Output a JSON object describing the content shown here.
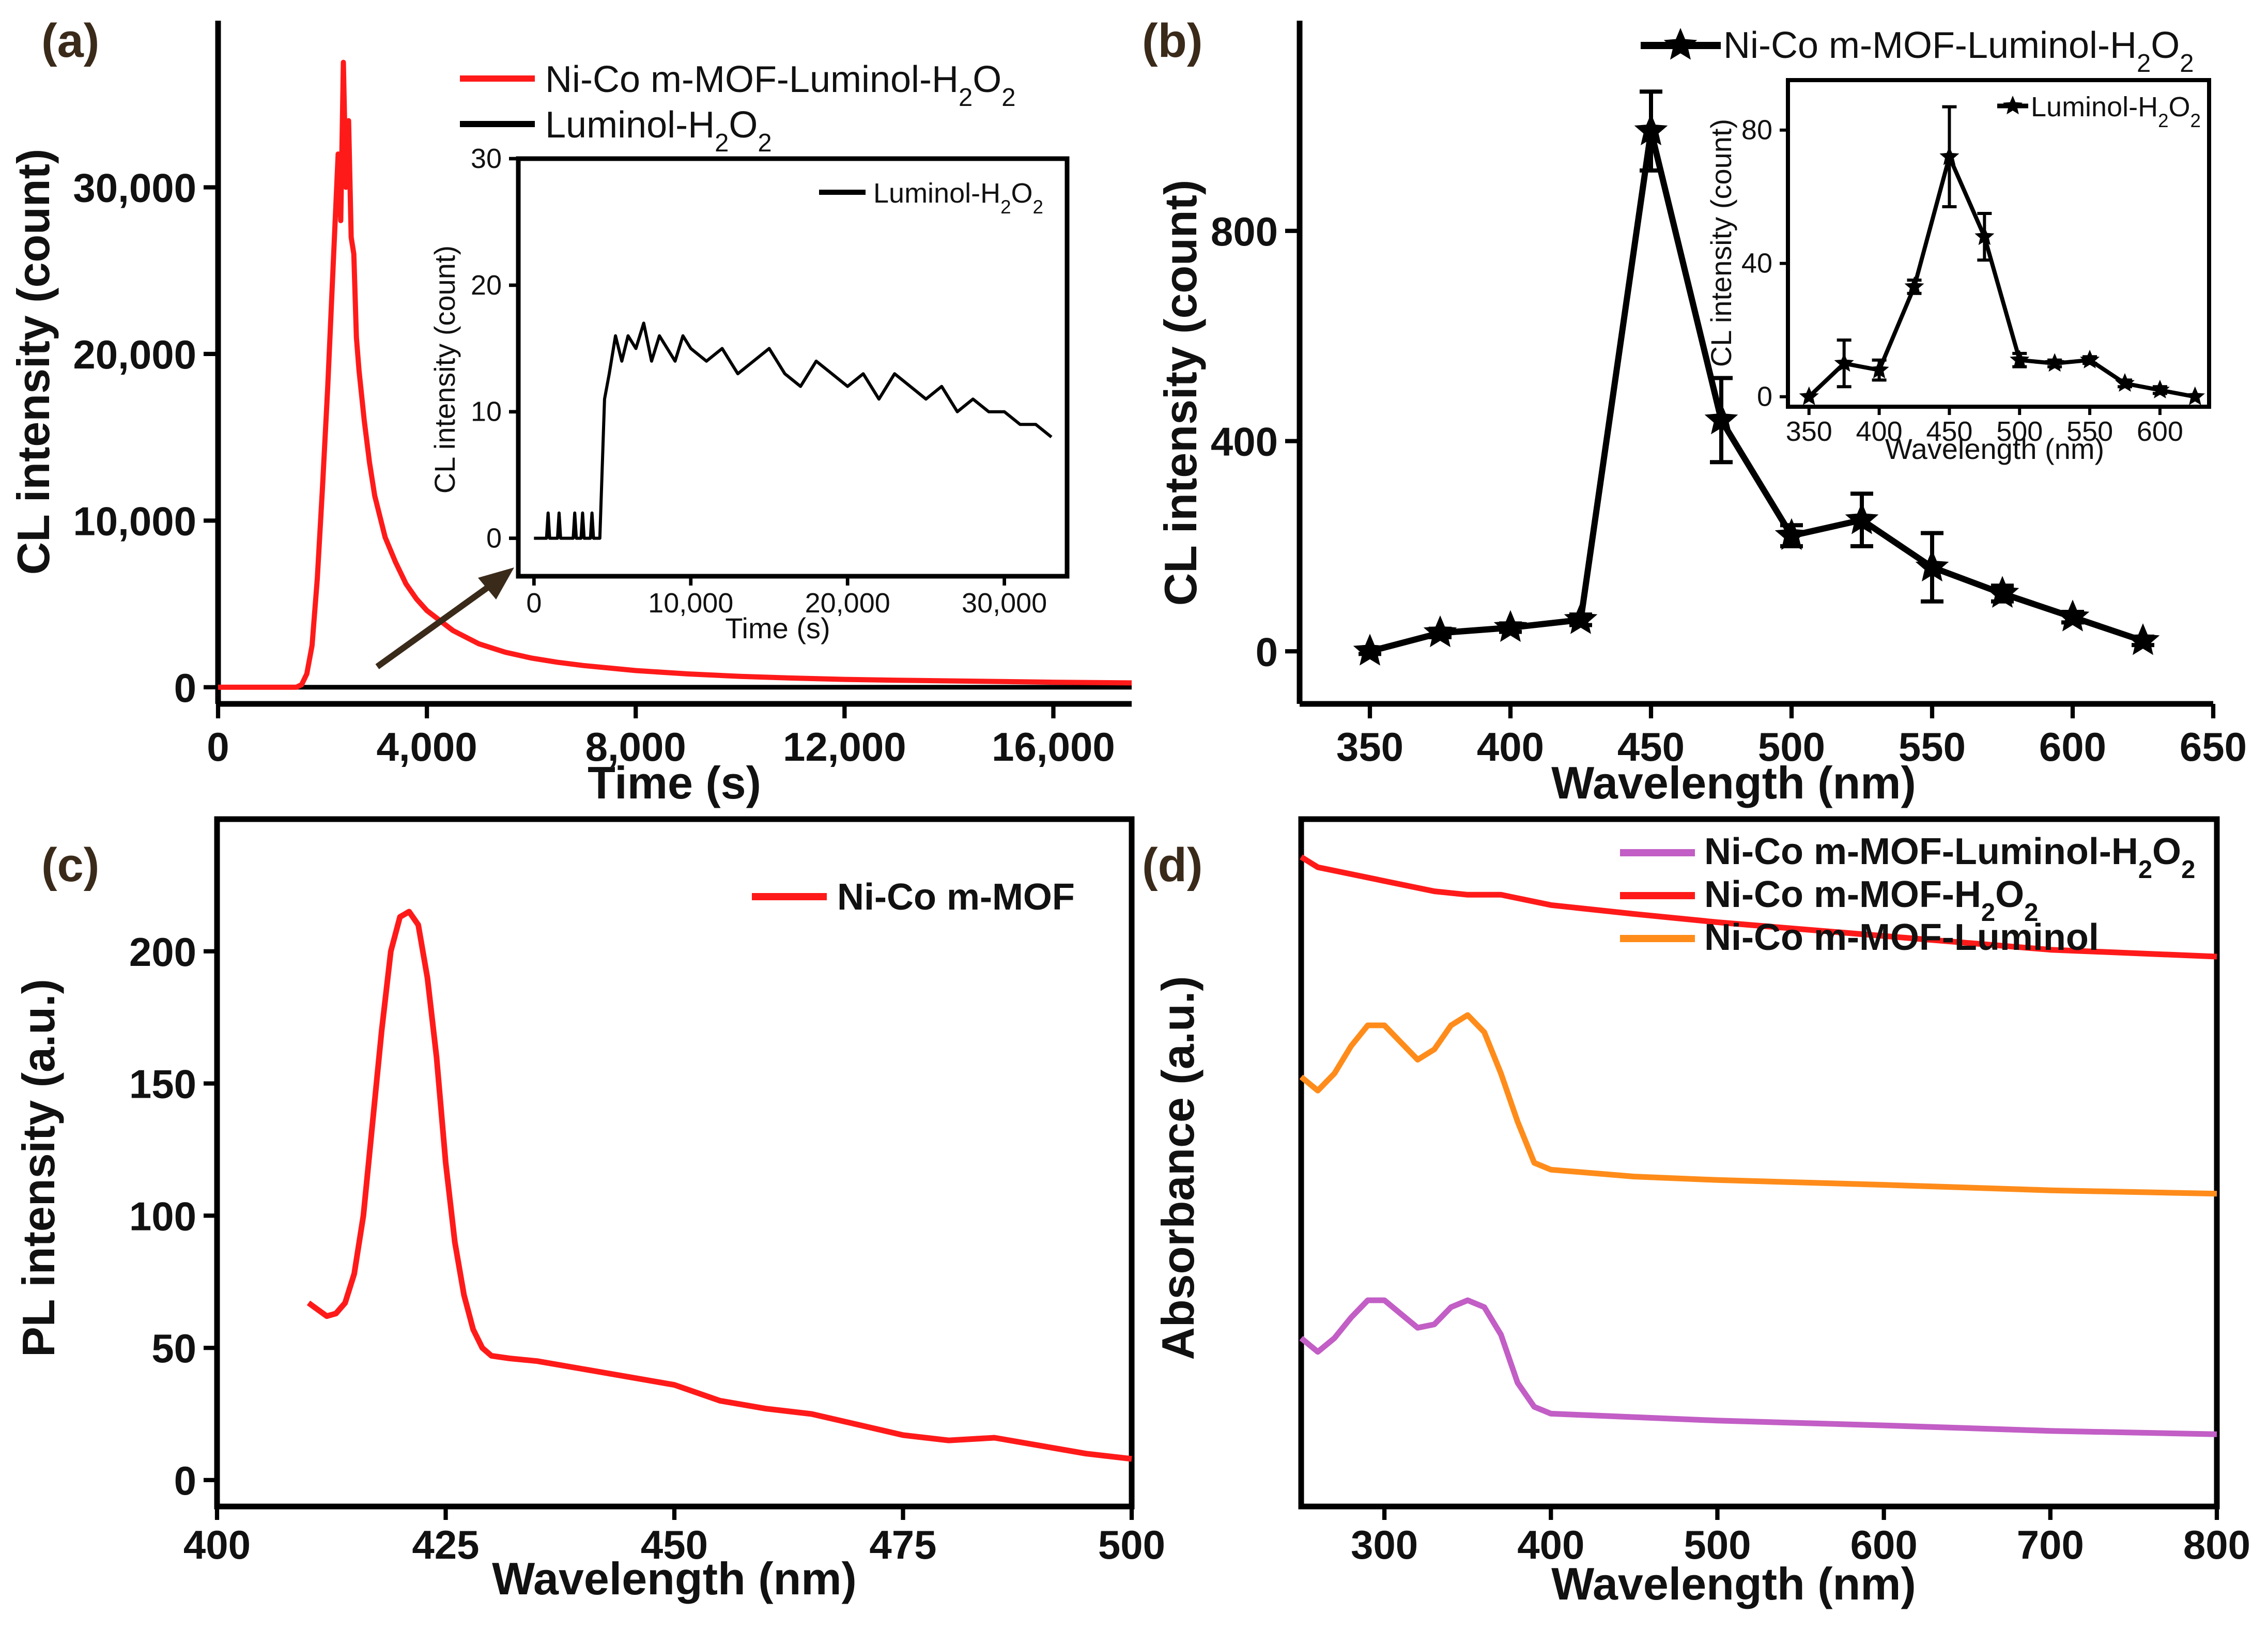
{
  "chart_data": [
    {
      "id": "a",
      "panel_label": "(a)",
      "type": "line",
      "xlabel": "Time (s)",
      "ylabel": "CL intensity (count)",
      "xlim": [
        0,
        17500
      ],
      "ylim": [
        -1000,
        40000
      ],
      "xticks": [
        0,
        4000,
        8000,
        12000,
        16000
      ],
      "xtick_labels": [
        "0",
        "4,000",
        "8,000",
        "12,000",
        "16,000"
      ],
      "yticks": [
        0,
        10000,
        20000,
        30000
      ],
      "ytick_labels": [
        "0",
        "10,000",
        "20,000",
        "30,000"
      ],
      "series": [
        {
          "name": "Ni-Co m-MOF-Luminol-H2O2",
          "label_main": "Ni-Co m-MOF-Luminol-H",
          "label_sub1": "2",
          "label_mid": "O",
          "label_sub2": "2",
          "color": "#ff1a1a",
          "x": [
            0,
            1500,
            1600,
            1700,
            1800,
            1900,
            2000,
            2100,
            2200,
            2300,
            2350,
            2400,
            2450,
            2500,
            2550,
            2600,
            2650,
            2700,
            2800,
            2900,
            3000,
            3200,
            3400,
            3600,
            3800,
            4000,
            4500,
            5000,
            5500,
            6000,
            6500,
            7000,
            8000,
            9000,
            10000,
            11000,
            12000,
            13000,
            14000,
            15000,
            16000,
            17500
          ],
          "y": [
            0,
            0,
            150,
            800,
            2500,
            6500,
            12000,
            18000,
            25000,
            32000,
            28000,
            37500,
            30000,
            34000,
            27000,
            26000,
            21000,
            19000,
            16000,
            13500,
            11500,
            9000,
            7500,
            6200,
            5300,
            4600,
            3400,
            2600,
            2100,
            1750,
            1500,
            1300,
            1000,
            800,
            650,
            550,
            470,
            420,
            380,
            340,
            300,
            260
          ]
        },
        {
          "name": "Luminol-H2O2",
          "label_main": "Luminol-H",
          "label_sub1": "2",
          "label_mid": "O",
          "label_sub2": "2",
          "color": "#000000",
          "x": [
            0,
            17500
          ],
          "y": [
            0,
            0
          ]
        }
      ],
      "annotation": "arrow from baseline to inset",
      "inset": {
        "xlabel": "Time (s)",
        "ylabel": "CL intensity (count)",
        "xlim": [
          -1000,
          34000
        ],
        "ylim": [
          -3,
          30
        ],
        "xticks": [
          0,
          10000,
          20000,
          30000
        ],
        "xtick_labels": [
          "0",
          "10,000",
          "20,000",
          "30,000"
        ],
        "yticks": [
          0,
          10,
          20,
          30
        ],
        "ytick_labels": [
          "0",
          "10",
          "20",
          "30"
        ],
        "series": [
          {
            "name": "Luminol-H2O2",
            "label_main": "Luminol-H",
            "label_sub1": "2",
            "label_mid": "O",
            "label_sub2": "2",
            "color": "#000000",
            "x": [
              0,
              800,
              900,
              1000,
              1500,
              1600,
              1700,
              2500,
              2600,
              2700,
              3000,
              3100,
              3200,
              3600,
              3700,
              3800,
              4000,
              4200,
              4500,
              4800,
              5200,
              5600,
              6000,
              6500,
              7000,
              7500,
              8000,
              8500,
              9000,
              9500,
              10000,
              11000,
              12000,
              13000,
              14000,
              15000,
              16000,
              17000,
              18000,
              19000,
              20000,
              21000,
              22000,
              23000,
              24000,
              25000,
              26000,
              27000,
              28000,
              29000,
              30000,
              31000,
              32000,
              33000
            ],
            "y": [
              0,
              0,
              2,
              0,
              0,
              2,
              0,
              0,
              2,
              0,
              0,
              2,
              0,
              0,
              2,
              0,
              0,
              0,
              11,
              13,
              16,
              14,
              16,
              15,
              17,
              14,
              16,
              15,
              14,
              16,
              15,
              14,
              15,
              13,
              14,
              15,
              13,
              12,
              14,
              13,
              12,
              13,
              11,
              13,
              12,
              11,
              12,
              10,
              11,
              10,
              10,
              9,
              9,
              8
            ]
          }
        ]
      }
    },
    {
      "id": "b",
      "panel_label": "(b)",
      "type": "line",
      "xlabel": "Wavelength (nm)",
      "ylabel": "CL intensity (count)",
      "xlim": [
        325,
        650
      ],
      "ylim": [
        -100,
        1200
      ],
      "xticks": [
        350,
        400,
        450,
        500,
        550,
        600,
        650
      ],
      "xtick_labels": [
        "350",
        "400",
        "450",
        "500",
        "550",
        "600",
        "650"
      ],
      "yticks": [
        0,
        400,
        800
      ],
      "ytick_labels": [
        "0",
        "400",
        "800"
      ],
      "series": [
        {
          "name": "Ni-Co m-MOF-Luminol-H2O2",
          "label_main": "Ni-Co m-MOF-Luminol-H",
          "label_sub1": "2",
          "label_mid": "O",
          "label_sub2": "2",
          "color": "#000000",
          "marker": "star",
          "x": [
            350,
            375,
            400,
            425,
            450,
            475,
            500,
            525,
            550,
            575,
            600,
            625
          ],
          "y": [
            0,
            35,
            45,
            60,
            990,
            440,
            220,
            250,
            160,
            110,
            65,
            20
          ],
          "err": [
            5,
            8,
            8,
            10,
            75,
            80,
            20,
            50,
            65,
            15,
            10,
            8
          ]
        }
      ],
      "inset": {
        "xlabel": "Wavelength (nm)",
        "ylabel": "CL intensity (count)",
        "xlim": [
          335,
          635
        ],
        "ylim": [
          -3,
          95
        ],
        "xticks": [
          350,
          400,
          450,
          500,
          550,
          600
        ],
        "xtick_labels": [
          "350",
          "400",
          "450",
          "500",
          "550",
          "600"
        ],
        "yticks": [
          0,
          40,
          80
        ],
        "ytick_labels": [
          "0",
          "40",
          "80"
        ],
        "series": [
          {
            "name": "Luminol-H2O2",
            "label_main": "Luminol-H",
            "label_sub1": "2",
            "label_mid": "O",
            "label_sub2": "2",
            "color": "#000000",
            "marker": "star",
            "x": [
              350,
              375,
              400,
              425,
              450,
              475,
              500,
              525,
              550,
              575,
              600,
              625
            ],
            "y": [
              0,
              10,
              8,
              33,
              72,
              48,
              11,
              10,
              11,
              4,
              2,
              0
            ],
            "err": [
              0,
              7,
              3,
              2,
              15,
              7,
              2,
              1,
              1,
              1,
              1,
              0
            ]
          }
        ]
      }
    },
    {
      "id": "c",
      "panel_label": "(c)",
      "type": "line",
      "xlabel": "Wavelength (nm)",
      "ylabel": "PL intensity (a.u.)",
      "xlim": [
        400,
        500
      ],
      "ylim": [
        -10,
        250
      ],
      "xticks": [
        400,
        425,
        450,
        475,
        500
      ],
      "xtick_labels": [
        "400",
        "425",
        "450",
        "475",
        "500"
      ],
      "yticks": [
        0,
        50,
        100,
        150,
        200
      ],
      "ytick_labels": [
        "0",
        "50",
        "100",
        "150",
        "200"
      ],
      "series": [
        {
          "name": "Ni-Co m-MOF",
          "label_main": "Ni-Co m-MOF",
          "color": "#ff1a1a",
          "x": [
            410,
            412,
            413,
            414,
            415,
            416,
            417,
            418,
            419,
            420,
            421,
            422,
            423,
            424,
            425,
            426,
            427,
            428,
            429,
            430,
            432,
            435,
            440,
            445,
            450,
            455,
            460,
            465,
            470,
            475,
            480,
            485,
            490,
            495,
            500
          ],
          "y": [
            67,
            62,
            63,
            67,
            78,
            100,
            135,
            170,
            200,
            213,
            215,
            210,
            190,
            160,
            120,
            90,
            70,
            57,
            50,
            47,
            46,
            45,
            42,
            39,
            36,
            30,
            27,
            25,
            21,
            17,
            15,
            16,
            13,
            10,
            8
          ]
        }
      ]
    },
    {
      "id": "d",
      "panel_label": "(d)",
      "type": "line",
      "xlabel": "Wavelength (nm)",
      "ylabel": "Absorbance (a.u.)",
      "xlim": [
        250,
        800
      ],
      "ylim": [
        0,
        1
      ],
      "xticks": [
        300,
        400,
        500,
        600,
        700,
        800
      ],
      "xtick_labels": [
        "300",
        "400",
        "500",
        "600",
        "700",
        "800"
      ],
      "yticks": [],
      "ytick_labels": [],
      "series": [
        {
          "name": "Ni-Co m-MOF-Luminol-H2O2",
          "label_main": "Ni-Co m-MOF-Luminol-H",
          "label_sub1": "2",
          "label_mid": "O",
          "label_sub2": "2",
          "color": "#c25ec5",
          "x": [
            250,
            260,
            270,
            280,
            290,
            300,
            310,
            320,
            330,
            340,
            350,
            360,
            370,
            380,
            390,
            400,
            450,
            500,
            600,
            700,
            800
          ],
          "y": [
            0.245,
            0.225,
            0.245,
            0.275,
            0.3,
            0.3,
            0.28,
            0.26,
            0.265,
            0.29,
            0.3,
            0.29,
            0.25,
            0.18,
            0.145,
            0.135,
            0.13,
            0.125,
            0.118,
            0.11,
            0.105
          ]
        },
        {
          "name": "Ni-Co m-MOF-H2O2",
          "label_main": "Ni-Co m-MOF-H",
          "label_sub1": "2",
          "label_mid": "O",
          "label_sub2": "2",
          "color": "#ff1a1a",
          "x": [
            250,
            260,
            280,
            300,
            330,
            350,
            370,
            400,
            450,
            500,
            600,
            700,
            800
          ],
          "y": [
            0.945,
            0.93,
            0.92,
            0.91,
            0.895,
            0.89,
            0.89,
            0.875,
            0.862,
            0.85,
            0.83,
            0.81,
            0.8
          ]
        },
        {
          "name": "Ni-Co m-MOF-Luminol",
          "label_main": "Ni-Co m-MOF-Luminol",
          "color": "#ff8c1a",
          "x": [
            250,
            260,
            270,
            280,
            290,
            300,
            310,
            320,
            330,
            340,
            350,
            360,
            370,
            380,
            390,
            400,
            450,
            500,
            600,
            700,
            800
          ],
          "y": [
            0.625,
            0.605,
            0.63,
            0.67,
            0.7,
            0.7,
            0.675,
            0.65,
            0.665,
            0.7,
            0.715,
            0.69,
            0.63,
            0.56,
            0.5,
            0.49,
            0.48,
            0.475,
            0.468,
            0.46,
            0.455
          ]
        }
      ]
    }
  ]
}
